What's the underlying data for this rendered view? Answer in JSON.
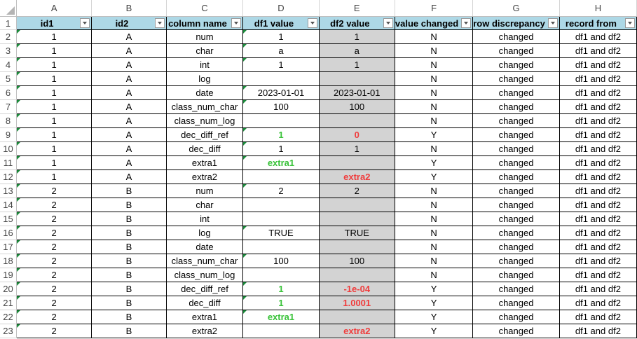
{
  "column_letters": [
    "A",
    "B",
    "C",
    "D",
    "E",
    "F",
    "G",
    "H"
  ],
  "header_labels": [
    "id1",
    "id2",
    "column name",
    "df1 value",
    "df2 value",
    "value changed",
    "row discrepancy",
    "record from"
  ],
  "rows": [
    {
      "n": "2",
      "id1": "1",
      "id2": "A",
      "col": "num",
      "df1": "1",
      "df2": "1",
      "df1_style": "",
      "df2_style": "",
      "changed": "N",
      "disc": "changed",
      "from": "df1 and df2"
    },
    {
      "n": "3",
      "id1": "1",
      "id2": "A",
      "col": "char",
      "df1": "a",
      "df2": "a",
      "df1_style": "",
      "df2_style": "",
      "changed": "N",
      "disc": "changed",
      "from": "df1 and df2"
    },
    {
      "n": "4",
      "id1": "1",
      "id2": "A",
      "col": "int",
      "df1": "1",
      "df2": "1",
      "df1_style": "",
      "df2_style": "",
      "changed": "N",
      "disc": "changed",
      "from": "df1 and df2"
    },
    {
      "n": "5",
      "id1": "1",
      "id2": "A",
      "col": "log",
      "df1": "",
      "df2": "",
      "df1_style": "",
      "df2_style": "",
      "changed": "N",
      "disc": "changed",
      "from": "df1 and df2"
    },
    {
      "n": "6",
      "id1": "1",
      "id2": "A",
      "col": "date",
      "df1": "2023-01-01",
      "df2": "2023-01-01",
      "df1_style": "",
      "df2_style": "",
      "changed": "N",
      "disc": "changed",
      "from": "df1 and df2"
    },
    {
      "n": "7",
      "id1": "1",
      "id2": "A",
      "col": "class_num_char",
      "df1": "100",
      "df2": "100",
      "df1_style": "",
      "df2_style": "",
      "changed": "N",
      "disc": "changed",
      "from": "df1 and df2"
    },
    {
      "n": "8",
      "id1": "1",
      "id2": "A",
      "col": "class_num_log",
      "df1": "",
      "df2": "",
      "df1_style": "",
      "df2_style": "",
      "changed": "N",
      "disc": "changed",
      "from": "df1 and df2"
    },
    {
      "n": "9",
      "id1": "1",
      "id2": "A",
      "col": "dec_diff_ref",
      "df1": "1",
      "df2": "0",
      "df1_style": "green",
      "df2_style": "red",
      "changed": "Y",
      "disc": "changed",
      "from": "df1 and df2"
    },
    {
      "n": "10",
      "id1": "1",
      "id2": "A",
      "col": "dec_diff",
      "df1": "1",
      "df2": "1",
      "df1_style": "",
      "df2_style": "",
      "changed": "N",
      "disc": "changed",
      "from": "df1 and df2"
    },
    {
      "n": "11",
      "id1": "1",
      "id2": "A",
      "col": "extra1",
      "df1": "extra1",
      "df2": "",
      "df1_style": "green",
      "df2_style": "",
      "changed": "Y",
      "disc": "changed",
      "from": "df1 and df2"
    },
    {
      "n": "12",
      "id1": "1",
      "id2": "A",
      "col": "extra2",
      "df1": "",
      "df2": "extra2",
      "df1_style": "",
      "df2_style": "red",
      "changed": "Y",
      "disc": "changed",
      "from": "df1 and df2"
    },
    {
      "n": "13",
      "id1": "2",
      "id2": "B",
      "col": "num",
      "df1": "2",
      "df2": "2",
      "df1_style": "",
      "df2_style": "",
      "changed": "N",
      "disc": "changed",
      "from": "df1 and df2"
    },
    {
      "n": "14",
      "id1": "2",
      "id2": "B",
      "col": "char",
      "df1": "",
      "df2": "",
      "df1_style": "",
      "df2_style": "",
      "changed": "N",
      "disc": "changed",
      "from": "df1 and df2"
    },
    {
      "n": "15",
      "id1": "2",
      "id2": "B",
      "col": "int",
      "df1": "",
      "df2": "",
      "df1_style": "",
      "df2_style": "",
      "changed": "N",
      "disc": "changed",
      "from": "df1 and df2"
    },
    {
      "n": "16",
      "id1": "2",
      "id2": "B",
      "col": "log",
      "df1": "TRUE",
      "df2": "TRUE",
      "df1_style": "",
      "df2_style": "",
      "changed": "N",
      "disc": "changed",
      "from": "df1 and df2"
    },
    {
      "n": "17",
      "id1": "2",
      "id2": "B",
      "col": "date",
      "df1": "",
      "df2": "",
      "df1_style": "",
      "df2_style": "",
      "changed": "N",
      "disc": "changed",
      "from": "df1 and df2"
    },
    {
      "n": "18",
      "id1": "2",
      "id2": "B",
      "col": "class_num_char",
      "df1": "100",
      "df2": "100",
      "df1_style": "",
      "df2_style": "",
      "changed": "N",
      "disc": "changed",
      "from": "df1 and df2"
    },
    {
      "n": "19",
      "id1": "2",
      "id2": "B",
      "col": "class_num_log",
      "df1": "",
      "df2": "",
      "df1_style": "",
      "df2_style": "",
      "changed": "N",
      "disc": "changed",
      "from": "df1 and df2"
    },
    {
      "n": "20",
      "id1": "2",
      "id2": "B",
      "col": "dec_diff_ref",
      "df1": "1",
      "df2": "-1e-04",
      "df1_style": "green",
      "df2_style": "red",
      "changed": "Y",
      "disc": "changed",
      "from": "df1 and df2"
    },
    {
      "n": "21",
      "id1": "2",
      "id2": "B",
      "col": "dec_diff",
      "df1": "1",
      "df2": "1.0001",
      "df1_style": "green",
      "df2_style": "red",
      "changed": "Y",
      "disc": "changed",
      "from": "df1 and df2"
    },
    {
      "n": "22",
      "id1": "2",
      "id2": "B",
      "col": "extra1",
      "df1": "extra1",
      "df2": "",
      "df1_style": "green",
      "df2_style": "",
      "changed": "Y",
      "disc": "changed",
      "from": "df1 and df2"
    },
    {
      "n": "23",
      "id1": "2",
      "id2": "B",
      "col": "extra2",
      "df1": "",
      "df2": "extra2",
      "df1_style": "",
      "df2_style": "red",
      "changed": "Y",
      "disc": "changed",
      "from": "df1 and df2"
    }
  ],
  "colors": {
    "header_fill": "#add8e6",
    "df2_fill": "#d3d3d3",
    "added_text": "#38c238",
    "removed_text": "#f03c3c"
  }
}
